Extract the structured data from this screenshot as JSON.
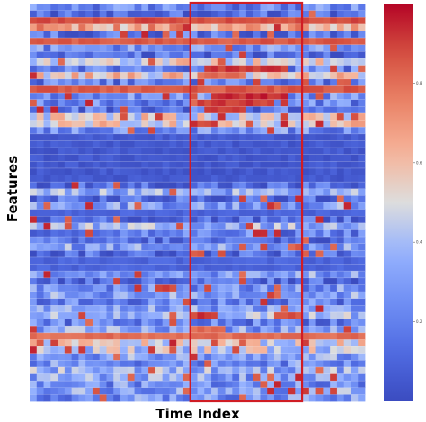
{
  "chart_data": {
    "type": "heatmap",
    "title": "",
    "xlabel": "Time Index",
    "ylabel": "Features",
    "n_rows": 58,
    "n_cols": 48,
    "value_range": [
      0,
      1
    ],
    "colormap": "coolwarm",
    "colorbar": {
      "ticks": [
        0.2,
        0.4,
        0.6,
        0.8
      ]
    },
    "highlight_window": {
      "col_start": 23,
      "col_end": 38,
      "color": "#d01c24"
    },
    "row_profiles": [
      0.22,
      0.12,
      0.88,
      0.65,
      0.15,
      0.85,
      0.25,
      0.12,
      0.5,
      0.2,
      0.55,
      0.18,
      0.85,
      0.25,
      0.22,
      0.15,
      0.5,
      0.55,
      0.25,
      0.06,
      0.05,
      0.05,
      0.05,
      0.05,
      0.05,
      0.05,
      0.12,
      0.35,
      0.12,
      0.3,
      0.1,
      0.12,
      0.35,
      0.2,
      0.12,
      0.3,
      0.12,
      0.1,
      0.1,
      0.3,
      0.12,
      0.25,
      0.3,
      0.2,
      0.3,
      0.35,
      0.2,
      0.3,
      0.8,
      0.5,
      0.45,
      0.3,
      0.25,
      0.35,
      0.3,
      0.25,
      0.3,
      0.25
    ],
    "window_bursts": [
      {
        "row": 9,
        "cols": [
          25,
          36
        ],
        "value": 0.95
      },
      {
        "row": 10,
        "cols": [
          24,
          30
        ],
        "value": 0.85
      },
      {
        "row": 13,
        "cols": [
          26,
          36
        ],
        "value": 0.98
      },
      {
        "row": 14,
        "cols": [
          24,
          34
        ],
        "value": 0.95
      },
      {
        "row": 15,
        "cols": [
          25,
          30
        ],
        "value": 0.95
      },
      {
        "row": 17,
        "cols": [
          23,
          26
        ],
        "value": 0.95
      },
      {
        "row": 45,
        "cols": [
          23,
          26
        ],
        "value": 0.95
      },
      {
        "row": 45,
        "cols": [
          35,
          38
        ],
        "value": 0.9
      },
      {
        "row": 47,
        "cols": [
          23,
          27
        ],
        "value": 0.85
      },
      {
        "row": 48,
        "cols": [
          36,
          38
        ],
        "value": 0.9
      }
    ]
  }
}
